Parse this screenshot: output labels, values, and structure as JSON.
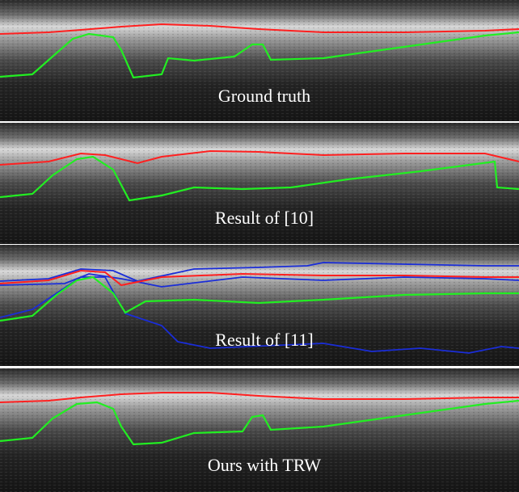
{
  "panels": [
    {
      "caption": "Ground truth"
    },
    {
      "caption": "Result of [10]"
    },
    {
      "caption": "Result of [11]"
    },
    {
      "caption": "Ours with TRW"
    }
  ]
}
